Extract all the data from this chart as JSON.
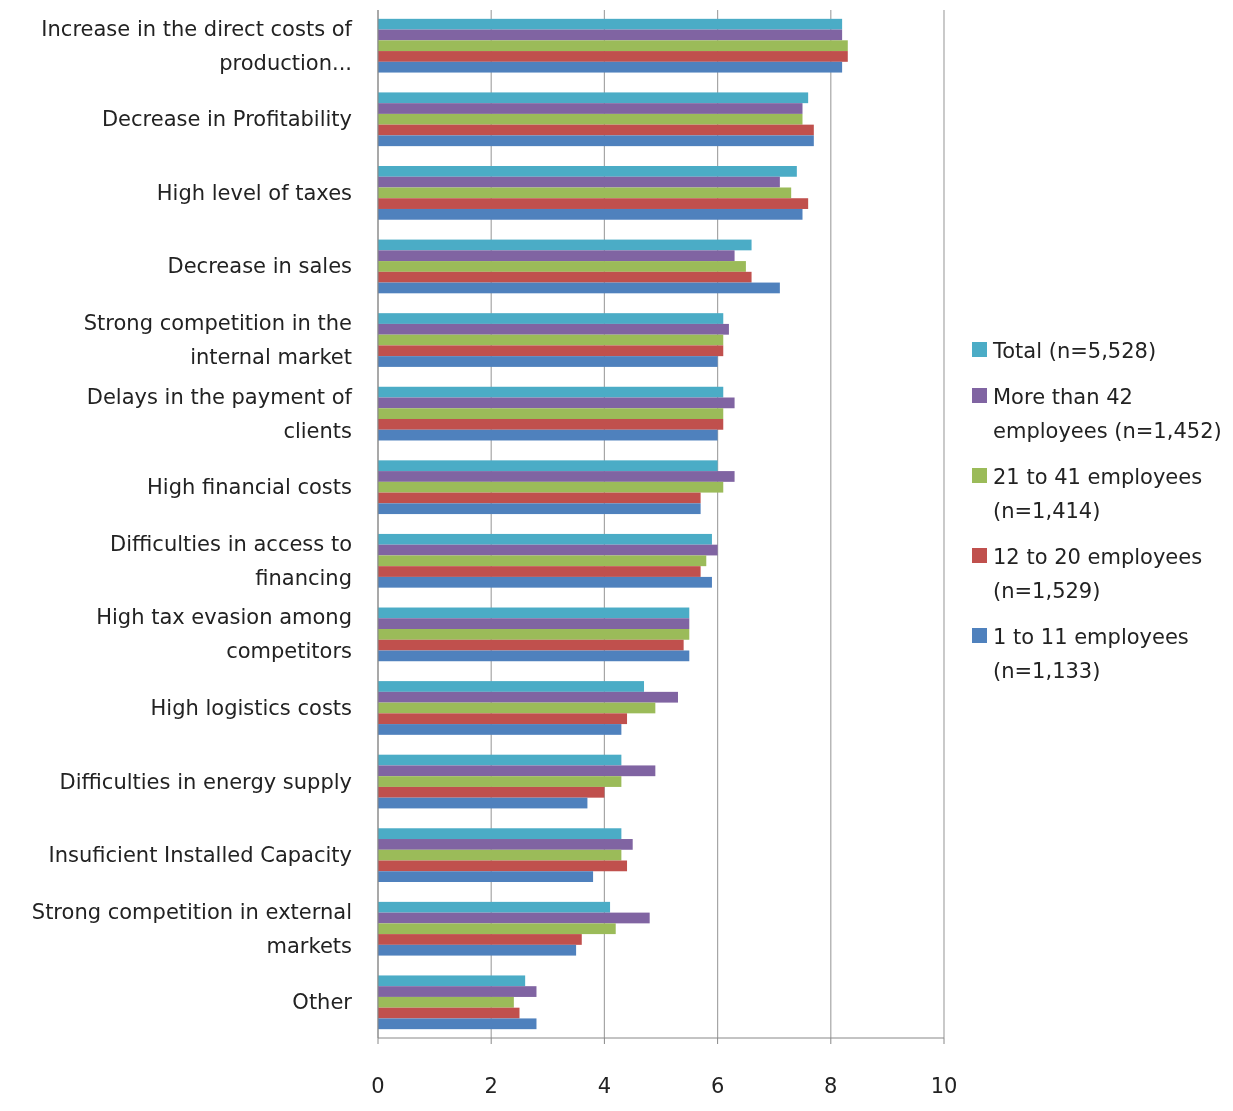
{
  "chart_data": {
    "type": "bar",
    "orientation": "horizontal",
    "categories": [
      "Increase in the direct costs of production...",
      "Decrease in Profitability",
      "High level of taxes",
      "Decrease in sales",
      "Strong competition in the internal market",
      "Delays in the payment of clients",
      "High financial costs",
      "Difficulties in access to financing",
      "High tax evasion among competitors",
      "High logistics costs",
      "Difficulties in energy supply",
      "Insuficient Installed Capacity",
      "Strong competition in external markets",
      "Other"
    ],
    "series": [
      {
        "name": "Total (n=5,528)",
        "color": "#4bacc6",
        "values": [
          8.2,
          7.6,
          7.4,
          6.6,
          6.1,
          6.1,
          6.0,
          5.9,
          5.5,
          4.7,
          4.3,
          4.3,
          4.1,
          2.6
        ]
      },
      {
        "name": "More than 42 employees (n=1,452)",
        "color": "#8064a2",
        "values": [
          8.2,
          7.5,
          7.1,
          6.3,
          6.2,
          6.3,
          6.3,
          6.0,
          5.5,
          5.3,
          4.9,
          4.5,
          4.8,
          2.8
        ]
      },
      {
        "name": "21 to 41 employees (n=1,414)",
        "color": "#9bbb59",
        "values": [
          8.3,
          7.5,
          7.3,
          6.5,
          6.1,
          6.1,
          6.1,
          5.8,
          5.5,
          4.9,
          4.3,
          4.3,
          4.2,
          2.4
        ]
      },
      {
        "name": "12 to 20 employees (n=1,529)",
        "color": "#c0504d",
        "values": [
          8.3,
          7.7,
          7.6,
          6.6,
          6.1,
          6.1,
          5.7,
          5.7,
          5.4,
          4.4,
          4.0,
          4.4,
          3.6,
          2.5
        ]
      },
      {
        "name": "1 to 11 employees (n=1,133)",
        "color": "#4f81bd",
        "values": [
          8.2,
          7.7,
          7.5,
          7.1,
          6.0,
          6.0,
          5.7,
          5.9,
          5.5,
          4.3,
          3.7,
          3.8,
          3.5,
          2.8
        ]
      }
    ],
    "xlim": [
      0,
      10
    ],
    "xticks": [
      0,
      2,
      4,
      6,
      8,
      10
    ],
    "grid": "x",
    "legend": "right"
  }
}
